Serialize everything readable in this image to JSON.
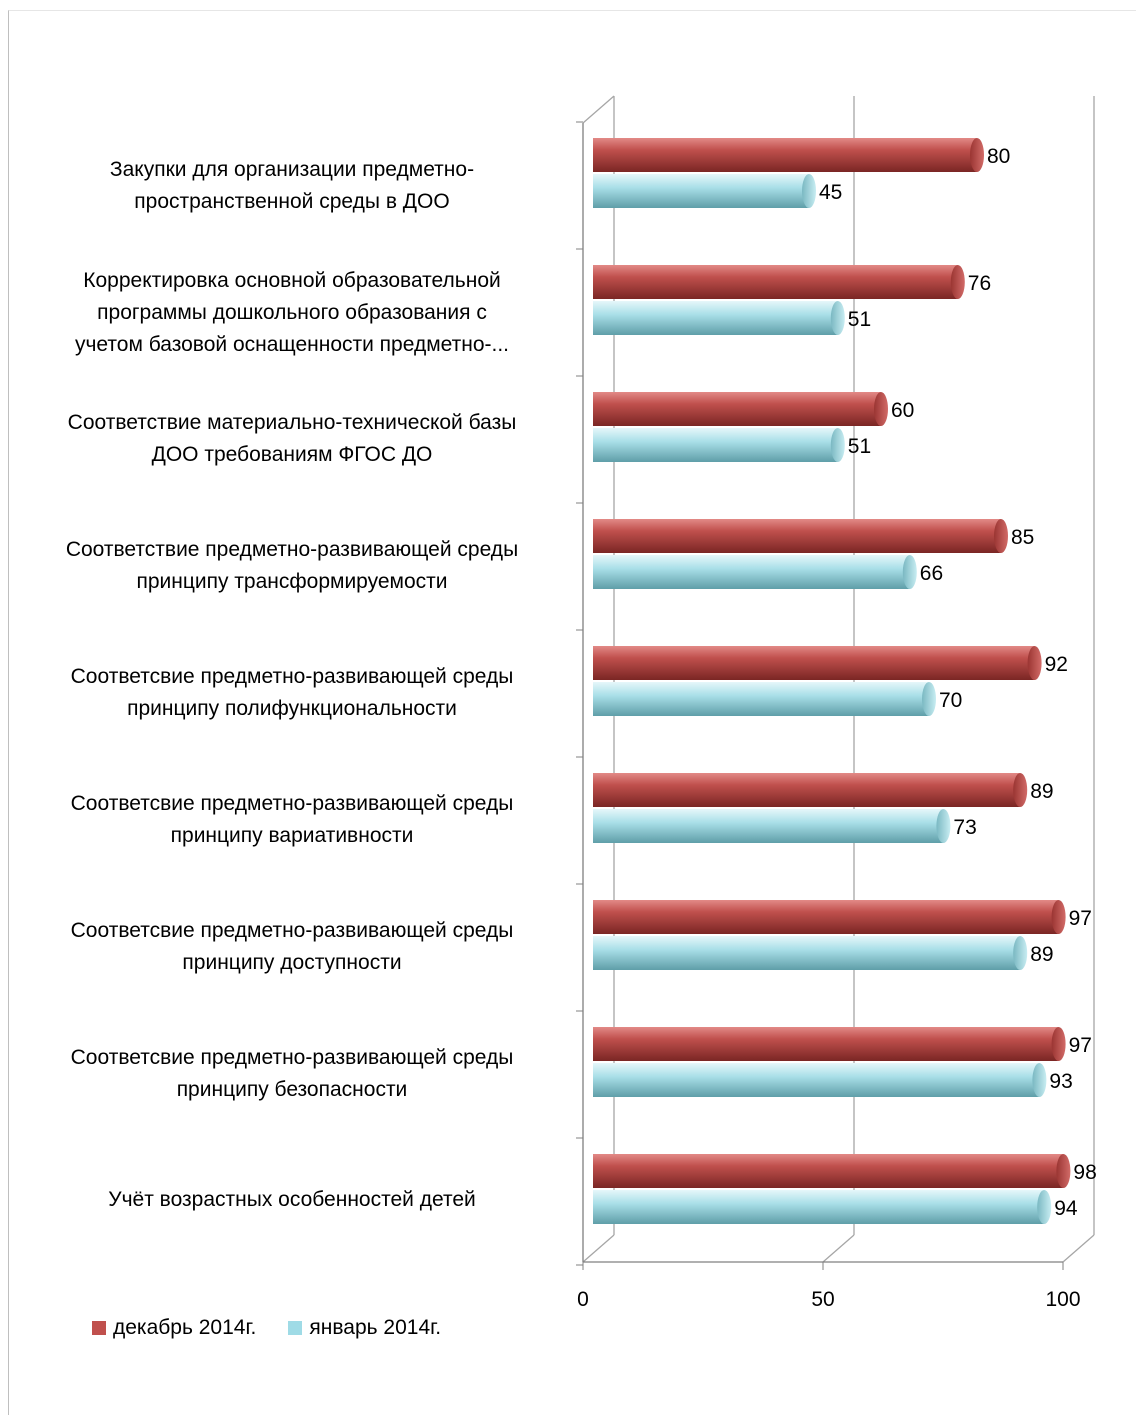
{
  "colors": {
    "december": "#c0504d",
    "january": "#9fdbe6",
    "grid": "#a6a6a6",
    "axis": "#808080"
  },
  "chart_data": {
    "type": "bar",
    "orientation": "horizontal",
    "categories": [
      "Закупки для организации предметно-\nпространственной среды в ДОО",
      "Корректировка основной образовательной\nпрограммы дошкольного образования с\nучетом базовой оснащенности предметно-...",
      "Соответствие материально-технической базы\nДОО требованиям ФГОС ДО",
      "Соответствие предметно-развивающей среды\nпринципу трансформируемости",
      "Соответсвие предметно-развивающей среды\nпринципу полифункциональности",
      "Соответсвие предметно-развивающей среды\nпринципу вариативности",
      "Соответсвие предметно-развивающей среды\nпринципу доступности",
      "Соответсвие предметно-развивающей среды\nпринципу безопасности",
      "Учёт возрастных особенностей детей"
    ],
    "series": [
      {
        "name": "декабрь 2014г.",
        "values": [
          80,
          76,
          60,
          85,
          92,
          89,
          97,
          97,
          98
        ]
      },
      {
        "name": "январь 2014г.",
        "values": [
          45,
          51,
          51,
          66,
          70,
          73,
          89,
          93,
          94
        ]
      }
    ],
    "xlim": [
      0,
      100
    ],
    "xticks": [
      "0",
      "50",
      "100"
    ],
    "grid": true,
    "legend_position": "bottom-left",
    "style": "3d-cylinder"
  }
}
